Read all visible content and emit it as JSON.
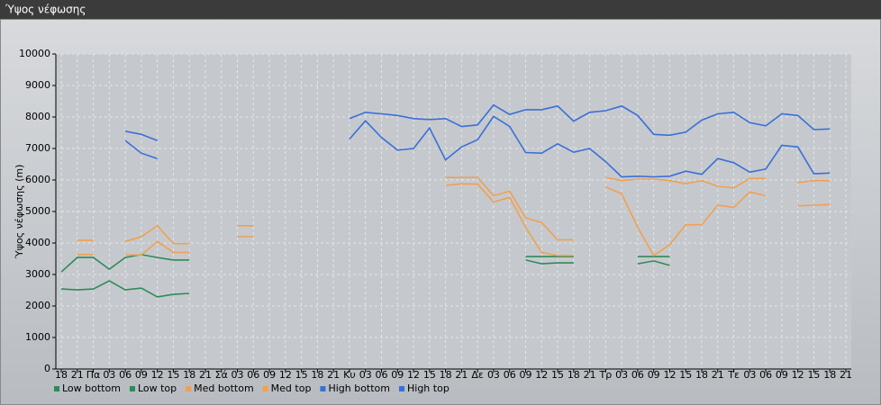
{
  "chart_data": {
    "type": "line",
    "title": "Ύψος νέφωσης",
    "y_label": "Ύψος νέφωσης (m)",
    "categories": [
      "18",
      "21",
      "Πα",
      "03",
      "06",
      "09",
      "12",
      "15",
      "18",
      "21",
      "Σά",
      "03",
      "06",
      "09",
      "12",
      "15",
      "18",
      "21",
      "Κυ",
      "03",
      "06",
      "09",
      "12",
      "15",
      "18",
      "21",
      "Δε",
      "03",
      "06",
      "09",
      "12",
      "15",
      "18",
      "21",
      "Τρ",
      "03",
      "06",
      "09",
      "12",
      "15",
      "18",
      "21",
      "Τε",
      "03",
      "06",
      "09",
      "12",
      "15",
      "18",
      "21"
    ],
    "ylim": [
      0,
      10000
    ],
    "yticks": [
      0,
      1000,
      2000,
      3000,
      4000,
      5000,
      6000,
      7000,
      8000,
      9000,
      10000
    ],
    "grid": true,
    "legend": "bottom",
    "series": [
      {
        "name": "Low bottom",
        "color": "#2e8b57",
        "values": [
          2540,
          2510,
          2540,
          2800,
          2510,
          2570,
          2290,
          2370,
          2400,
          null,
          null,
          null,
          null,
          null,
          null,
          null,
          null,
          null,
          null,
          null,
          null,
          null,
          null,
          null,
          null,
          null,
          null,
          null,
          null,
          3460,
          3340,
          3370,
          3370,
          null,
          null,
          null,
          3340,
          3430,
          3290,
          null,
          null,
          null,
          null,
          null,
          null,
          null,
          null,
          null,
          null,
          null
        ]
      },
      {
        "name": "Low top",
        "color": "#2e8b57",
        "values": [
          3080,
          3540,
          3540,
          3170,
          3540,
          3630,
          3540,
          3460,
          3460,
          null,
          null,
          null,
          null,
          null,
          null,
          null,
          null,
          null,
          null,
          null,
          null,
          null,
          null,
          null,
          null,
          null,
          null,
          null,
          null,
          3570,
          3570,
          3570,
          3570,
          null,
          null,
          null,
          3570,
          3570,
          3570,
          null,
          null,
          null,
          null,
          null,
          null,
          null,
          null,
          null,
          null,
          null
        ]
      },
      {
        "name": "Med bottom",
        "color": "#f0a050",
        "values": [
          null,
          3630,
          3630,
          null,
          3620,
          3620,
          4050,
          3700,
          3700,
          null,
          null,
          4200,
          4200,
          null,
          null,
          null,
          null,
          null,
          null,
          null,
          null,
          null,
          null,
          null,
          5830,
          5880,
          5870,
          5300,
          5450,
          4500,
          3700,
          3600,
          3600,
          null,
          5780,
          5560,
          4500,
          3600,
          3950,
          4580,
          4580,
          5200,
          5130,
          5620,
          5500,
          null,
          5180,
          5200,
          5220,
          null
        ]
      },
      {
        "name": "Med top",
        "color": "#f0a050",
        "values": [
          null,
          4090,
          4090,
          null,
          4050,
          4200,
          4550,
          3980,
          3980,
          null,
          null,
          4550,
          4550,
          null,
          null,
          null,
          null,
          null,
          null,
          null,
          null,
          null,
          null,
          null,
          6080,
          6080,
          6080,
          5500,
          5650,
          4800,
          4650,
          4100,
          4100,
          null,
          6080,
          5980,
          6030,
          6030,
          5980,
          5880,
          5980,
          5800,
          5750,
          6050,
          6050,
          null,
          5920,
          5980,
          5980,
          null
        ]
      },
      {
        "name": "High bottom",
        "color": "#3a6fd8",
        "values": [
          null,
          null,
          null,
          null,
          7250,
          6850,
          6680,
          null,
          null,
          null,
          null,
          null,
          null,
          null,
          null,
          null,
          null,
          null,
          7300,
          7880,
          7350,
          6950,
          7000,
          7650,
          6640,
          7050,
          7280,
          8020,
          7700,
          6870,
          6850,
          7150,
          6880,
          7000,
          6580,
          6100,
          6120,
          6100,
          6120,
          6280,
          6180,
          6680,
          6550,
          6250,
          6350,
          7100,
          7050,
          6200,
          6220,
          null
        ]
      },
      {
        "name": "High top",
        "color": "#3a6fd8",
        "values": [
          null,
          null,
          null,
          null,
          7550,
          7450,
          7250,
          null,
          null,
          null,
          null,
          null,
          null,
          null,
          null,
          null,
          null,
          null,
          7950,
          8150,
          8100,
          8050,
          7950,
          7920,
          7950,
          7700,
          7750,
          8380,
          8080,
          8230,
          8230,
          8350,
          7870,
          8150,
          8200,
          8350,
          8050,
          7450,
          7420,
          7520,
          7900,
          8100,
          8150,
          7820,
          7720,
          8100,
          8050,
          7600,
          7620,
          null
        ]
      }
    ]
  }
}
